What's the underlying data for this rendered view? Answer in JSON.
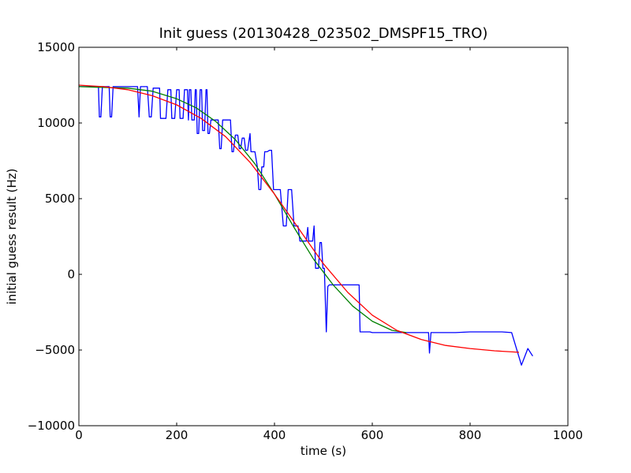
{
  "chart_data": {
    "type": "line",
    "title": "Init guess (20130428_023502_DMSPF15_TRO)",
    "xlabel": "time (s)",
    "ylabel": "initial guess result (Hz)",
    "xlim": [
      0,
      1000
    ],
    "ylim": [
      -10000,
      15000
    ],
    "x_ticks": [
      0,
      200,
      400,
      600,
      800,
      1000
    ],
    "y_ticks": [
      -10000,
      -5000,
      0,
      5000,
      10000,
      15000
    ],
    "x_tick_labels": [
      "0",
      "200",
      "400",
      "600",
      "800",
      "1000"
    ],
    "y_tick_labels": [
      "−10000",
      "−5000",
      "0",
      "5000",
      "10000",
      "15000"
    ],
    "grid": false,
    "legend": "none",
    "series": [
      {
        "color": "#0000ff",
        "points": [
          [
            0,
            12400
          ],
          [
            40,
            12400
          ],
          [
            42,
            10400
          ],
          [
            45,
            10400
          ],
          [
            48,
            12400
          ],
          [
            62,
            12400
          ],
          [
            64,
            10400
          ],
          [
            67,
            10400
          ],
          [
            70,
            12400
          ],
          [
            120,
            12400
          ],
          [
            123,
            10400
          ],
          [
            126,
            12400
          ],
          [
            140,
            12400
          ],
          [
            144,
            10400
          ],
          [
            148,
            10400
          ],
          [
            152,
            12300
          ],
          [
            165,
            12300
          ],
          [
            167,
            10300
          ],
          [
            178,
            10300
          ],
          [
            182,
            12200
          ],
          [
            188,
            12200
          ],
          [
            190,
            10300
          ],
          [
            196,
            10300
          ],
          [
            200,
            12200
          ],
          [
            205,
            12200
          ],
          [
            207,
            10300
          ],
          [
            213,
            10300
          ],
          [
            216,
            12200
          ],
          [
            222,
            12200
          ],
          [
            224,
            10200
          ],
          [
            226,
            12200
          ],
          [
            229,
            12200
          ],
          [
            231,
            10200
          ],
          [
            236,
            10200
          ],
          [
            238,
            12200
          ],
          [
            240,
            12200
          ],
          [
            242,
            9300
          ],
          [
            245,
            9300
          ],
          [
            248,
            12200
          ],
          [
            251,
            12200
          ],
          [
            253,
            9500
          ],
          [
            257,
            9500
          ],
          [
            260,
            12200
          ],
          [
            262,
            12200
          ],
          [
            264,
            9300
          ],
          [
            267,
            9300
          ],
          [
            270,
            10200
          ],
          [
            285,
            10200
          ],
          [
            288,
            8300
          ],
          [
            291,
            8300
          ],
          [
            294,
            10200
          ],
          [
            310,
            10200
          ],
          [
            313,
            8100
          ],
          [
            316,
            8100
          ],
          [
            320,
            9200
          ],
          [
            325,
            9200
          ],
          [
            328,
            8300
          ],
          [
            331,
            8300
          ],
          [
            334,
            9000
          ],
          [
            338,
            9000
          ],
          [
            341,
            8200
          ],
          [
            345,
            8200
          ],
          [
            350,
            9300
          ],
          [
            352,
            8100
          ],
          [
            360,
            8100
          ],
          [
            365,
            7100
          ],
          [
            368,
            5600
          ],
          [
            372,
            5600
          ],
          [
            374,
            7100
          ],
          [
            378,
            7100
          ],
          [
            380,
            8100
          ],
          [
            385,
            8100
          ],
          [
            390,
            8200
          ],
          [
            394,
            8200
          ],
          [
            398,
            5600
          ],
          [
            412,
            5600
          ],
          [
            418,
            3200
          ],
          [
            424,
            3200
          ],
          [
            428,
            5600
          ],
          [
            435,
            5600
          ],
          [
            440,
            3200
          ],
          [
            448,
            3200
          ],
          [
            452,
            2200
          ],
          [
            465,
            2200
          ],
          [
            468,
            3100
          ],
          [
            470,
            2200
          ],
          [
            478,
            2200
          ],
          [
            481,
            3200
          ],
          [
            484,
            400
          ],
          [
            490,
            400
          ],
          [
            493,
            2100
          ],
          [
            496,
            2100
          ],
          [
            499,
            400
          ],
          [
            502,
            400
          ],
          [
            506,
            -3800
          ],
          [
            509,
            -800
          ],
          [
            512,
            -700
          ],
          [
            520,
            -700
          ],
          [
            524,
            -700
          ],
          [
            573,
            -700
          ],
          [
            575,
            -3800
          ],
          [
            595,
            -3800
          ],
          [
            600,
            -3850
          ],
          [
            715,
            -3850
          ],
          [
            717,
            -5200
          ],
          [
            720,
            -3850
          ],
          [
            770,
            -3850
          ],
          [
            800,
            -3800
          ],
          [
            865,
            -3800
          ],
          [
            885,
            -3850
          ],
          [
            905,
            -6000
          ],
          [
            918,
            -4900
          ],
          [
            928,
            -5400
          ]
        ]
      },
      {
        "color": "#008000",
        "points": [
          [
            0,
            12400
          ],
          [
            50,
            12350
          ],
          [
            100,
            12300
          ],
          [
            150,
            12100
          ],
          [
            200,
            11600
          ],
          [
            240,
            11000
          ],
          [
            280,
            10100
          ],
          [
            320,
            8900
          ],
          [
            360,
            7300
          ],
          [
            400,
            5300
          ],
          [
            440,
            3100
          ],
          [
            480,
            1000
          ],
          [
            520,
            -700
          ],
          [
            560,
            -2100
          ],
          [
            600,
            -3100
          ],
          [
            640,
            -3700
          ],
          [
            670,
            -3850
          ]
        ]
      },
      {
        "color": "#ff0000",
        "points": [
          [
            0,
            12500
          ],
          [
            50,
            12400
          ],
          [
            100,
            12200
          ],
          [
            150,
            11800
          ],
          [
            200,
            11200
          ],
          [
            250,
            10300
          ],
          [
            300,
            9100
          ],
          [
            350,
            7400
          ],
          [
            400,
            5300
          ],
          [
            450,
            3000
          ],
          [
            500,
            700
          ],
          [
            550,
            -1200
          ],
          [
            600,
            -2700
          ],
          [
            650,
            -3700
          ],
          [
            700,
            -4300
          ],
          [
            750,
            -4700
          ],
          [
            800,
            -4900
          ],
          [
            850,
            -5050
          ],
          [
            900,
            -5150
          ]
        ]
      }
    ]
  }
}
